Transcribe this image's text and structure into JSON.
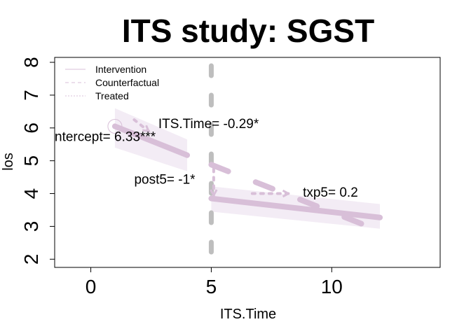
{
  "chart_data": {
    "type": "line",
    "title": "ITS study: SGST",
    "xlabel": "ITS.Time",
    "ylabel": "los",
    "xlim": [
      -1.5,
      14.5
    ],
    "ylim": [
      1.75,
      8.15
    ],
    "xticks": [
      0,
      5,
      10
    ],
    "yticks": [
      2,
      3,
      4,
      5,
      6,
      7,
      8
    ],
    "grid": false,
    "legend": {
      "placement": "top-left",
      "entries": [
        {
          "label": "Intervention",
          "style": "solid"
        },
        {
          "label": "Counterfactual",
          "style": "dashed"
        },
        {
          "label": "Treated",
          "style": "dotted"
        }
      ]
    },
    "intervention_time": 5,
    "series": [
      {
        "name": "Intervention",
        "segments": [
          {
            "x": [
              1,
              4
            ],
            "y": [
              6.05,
              5.17
            ]
          },
          {
            "x": [
              5,
              12
            ],
            "y": [
              3.85,
              3.27
            ]
          }
        ]
      },
      {
        "name": "Counterfactual",
        "segments": [
          {
            "x": [
              5,
              12
            ],
            "y": [
              4.88,
              2.86
            ]
          }
        ]
      }
    ],
    "confidence_bands": [
      {
        "x": [
          1,
          4
        ],
        "upper": [
          6.6,
          5.65
        ],
        "lower": [
          5.4,
          4.68
        ]
      },
      {
        "x": [
          5,
          12
        ],
        "upper": [
          4.22,
          3.68
        ],
        "lower": [
          3.45,
          2.93
        ]
      }
    ],
    "treated_arrows": [
      {
        "from": [
          1.8,
          6.25
        ],
        "to": [
          2.4,
          5.9
        ]
      },
      {
        "from": [
          5.1,
          4.75
        ],
        "to": [
          5.1,
          3.95
        ]
      },
      {
        "from": [
          6.7,
          4.0
        ],
        "to": [
          8.2,
          4.0
        ]
      }
    ],
    "first_point": [
      1,
      6.05
    ],
    "annotations": [
      {
        "text": "ntercept= 6.33***",
        "x": -1.5,
        "y": 5.6
      },
      {
        "text": "ITS.Time= -0.29*",
        "x": 2.8,
        "y": 6.0
      },
      {
        "text": "post5= -1*",
        "x": 1.8,
        "y": 4.3
      },
      {
        "text": "txp5= 0.2",
        "x": 8.8,
        "y": 3.9
      }
    ],
    "colors": {
      "line": "#d8bfd8",
      "band": "#f3ecf5",
      "vline": "#bebebe",
      "axis": "#000000"
    }
  }
}
